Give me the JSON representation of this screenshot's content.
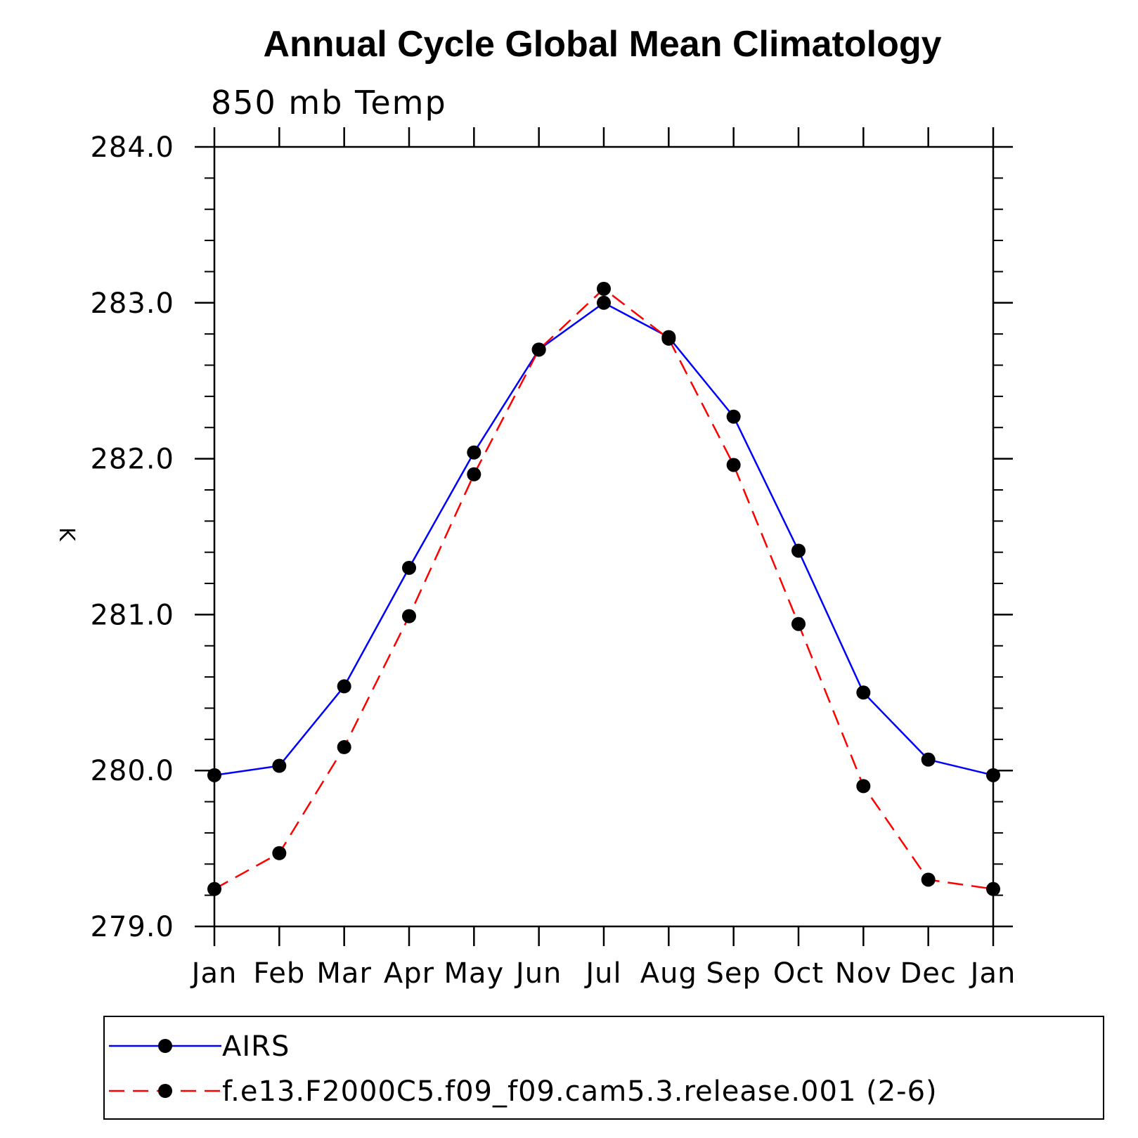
{
  "chart_data": {
    "type": "line",
    "title": "Annual Cycle Global Mean Climatology",
    "subtitle": "850 mb Temp",
    "ylabel": "K",
    "categories": [
      "Jan",
      "Feb",
      "Mar",
      "Apr",
      "May",
      "Jun",
      "Jul",
      "Aug",
      "Sep",
      "Oct",
      "Nov",
      "Dec",
      "Jan"
    ],
    "ylim": [
      279.0,
      284.0
    ],
    "yticks": [
      "279.0",
      "280.0",
      "281.0",
      "282.0",
      "283.0",
      "284.0"
    ],
    "y_minor_step": 0.2,
    "grid": false,
    "legend_position": "bottom",
    "series": [
      {
        "name": "AIRS",
        "color": "#0000ff",
        "style": "solid",
        "marker": "filled-circle",
        "values": [
          279.97,
          280.03,
          280.54,
          281.3,
          282.04,
          282.7,
          283.0,
          282.78,
          282.27,
          281.41,
          280.5,
          280.07,
          279.97
        ]
      },
      {
        "name": "f.e13.F2000C5.f09_f09.cam5.3.release.001 (2-6)",
        "color": "#ff0000",
        "style": "dashed",
        "marker": "filled-circle",
        "values": [
          279.24,
          279.47,
          280.15,
          280.99,
          281.9,
          282.7,
          283.09,
          282.77,
          281.96,
          280.94,
          279.9,
          279.3,
          279.24
        ]
      }
    ]
  }
}
